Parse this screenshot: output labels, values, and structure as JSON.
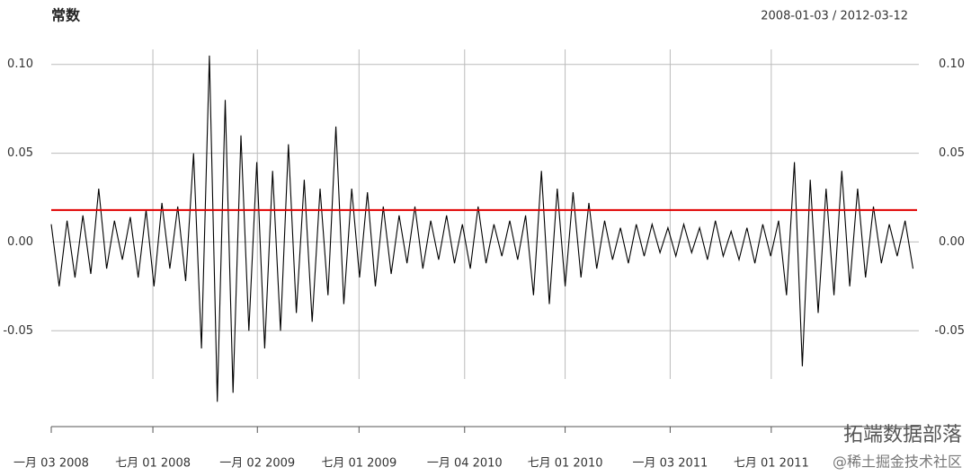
{
  "chart_data": {
    "type": "line",
    "title": "常数",
    "subtitle": "2008-01-03 / 2012-03-12",
    "x": [
      "2008-01-03",
      "2008-01-17",
      "2008-01-31",
      "2008-02-14",
      "2008-02-28",
      "2008-03-13",
      "2008-03-27",
      "2008-04-10",
      "2008-04-24",
      "2008-05-08",
      "2008-05-22",
      "2008-06-05",
      "2008-06-19",
      "2008-07-03",
      "2008-07-17",
      "2008-07-31",
      "2008-08-14",
      "2008-08-28",
      "2008-09-11",
      "2008-09-25",
      "2008-10-09",
      "2008-10-23",
      "2008-11-06",
      "2008-11-20",
      "2008-12-04",
      "2008-12-18",
      "2009-01-01",
      "2009-01-15",
      "2009-01-29",
      "2009-02-12",
      "2009-02-26",
      "2009-03-12",
      "2009-03-26",
      "2009-04-09",
      "2009-04-23",
      "2009-05-07",
      "2009-05-21",
      "2009-06-04",
      "2009-06-18",
      "2009-07-02",
      "2009-07-16",
      "2009-07-30",
      "2009-08-13",
      "2009-08-27",
      "2009-09-10",
      "2009-09-24",
      "2009-10-08",
      "2009-10-22",
      "2009-11-05",
      "2009-11-19",
      "2009-12-03",
      "2009-12-17",
      "2009-12-31",
      "2010-01-14",
      "2010-01-28",
      "2010-02-11",
      "2010-02-25",
      "2010-03-11",
      "2010-03-25",
      "2010-04-08",
      "2010-04-22",
      "2010-05-06",
      "2010-05-20",
      "2010-06-03",
      "2010-06-17",
      "2010-07-01",
      "2010-07-15",
      "2010-07-29",
      "2010-08-12",
      "2010-08-26",
      "2010-09-09",
      "2010-09-23",
      "2010-10-07",
      "2010-10-21",
      "2010-11-04",
      "2010-11-18",
      "2010-12-02",
      "2010-12-16",
      "2010-12-30",
      "2011-01-13",
      "2011-01-27",
      "2011-02-10",
      "2011-02-24",
      "2011-03-10",
      "2011-03-24",
      "2011-04-07",
      "2011-04-21",
      "2011-05-05",
      "2011-05-19",
      "2011-06-02",
      "2011-06-16",
      "2011-06-30",
      "2011-07-14",
      "2011-07-28",
      "2011-08-11",
      "2011-08-25",
      "2011-09-08",
      "2011-09-22",
      "2011-10-06",
      "2011-10-20",
      "2011-11-03",
      "2011-11-17",
      "2011-12-01",
      "2011-12-15",
      "2011-12-29",
      "2012-01-12",
      "2012-01-26",
      "2012-02-09",
      "2012-02-23",
      "2012-03-08"
    ],
    "series": [
      {
        "color": "#000000",
        "values": [
          0.01,
          -0.025,
          0.012,
          -0.02,
          0.015,
          -0.018,
          0.03,
          -0.015,
          0.012,
          -0.01,
          0.014,
          -0.02,
          0.018,
          -0.025,
          0.022,
          -0.015,
          0.02,
          -0.022,
          0.05,
          -0.06,
          0.105,
          -0.09,
          0.08,
          -0.085,
          0.06,
          -0.05,
          0.045,
          -0.06,
          0.04,
          -0.05,
          0.055,
          -0.04,
          0.035,
          -0.045,
          0.03,
          -0.03,
          0.065,
          -0.035,
          0.03,
          -0.02,
          0.028,
          -0.025,
          0.02,
          -0.018,
          0.015,
          -0.012,
          0.02,
          -0.015,
          0.012,
          -0.01,
          0.015,
          -0.012,
          0.01,
          -0.015,
          0.02,
          -0.012,
          0.01,
          -0.008,
          0.012,
          -0.01,
          0.015,
          -0.03,
          0.04,
          -0.035,
          0.03,
          -0.025,
          0.028,
          -0.02,
          0.022,
          -0.015,
          0.012,
          -0.01,
          0.008,
          -0.012,
          0.01,
          -0.008,
          0.01,
          -0.006,
          0.008,
          -0.008,
          0.01,
          -0.006,
          0.008,
          -0.01,
          0.012,
          -0.008,
          0.006,
          -0.01,
          0.008,
          -0.012,
          0.01,
          -0.008,
          0.012,
          -0.03,
          0.045,
          -0.07,
          0.035,
          -0.04,
          0.03,
          -0.03,
          0.04,
          -0.025,
          0.03,
          -0.02,
          0.02,
          -0.012,
          0.01,
          -0.008,
          0.012,
          -0.015
        ]
      }
    ],
    "hlines": [
      {
        "value": 0.018,
        "color": "#e00000"
      }
    ],
    "xlim": [
      "2008-01-03",
      "2012-03-12"
    ],
    "xticks": [
      {
        "value": "2008-01-03",
        "label": "一月 03 2008"
      },
      {
        "value": "2008-07-01",
        "label": "七月 01 2008"
      },
      {
        "value": "2009-01-02",
        "label": "一月 02 2009"
      },
      {
        "value": "2009-07-01",
        "label": "七月 01 2009"
      },
      {
        "value": "2010-01-04",
        "label": "一月 04 2010"
      },
      {
        "value": "2010-07-01",
        "label": "七月 01 2010"
      },
      {
        "value": "2011-01-03",
        "label": "一月 03 2011"
      },
      {
        "value": "2011-07-01",
        "label": "七月 01 2011"
      }
    ],
    "ylim": [
      -0.104,
      0.111
    ],
    "yticks": [
      {
        "value": -0.05,
        "label": "-0.05"
      },
      {
        "value": 0,
        "label": "0.00"
      },
      {
        "value": 0.05,
        "label": "0.05"
      },
      {
        "value": 0.1,
        "label": "0.10"
      }
    ],
    "grid": true,
    "watermark": [
      "拓端数据部落",
      "@稀土掘金技术社区"
    ]
  }
}
